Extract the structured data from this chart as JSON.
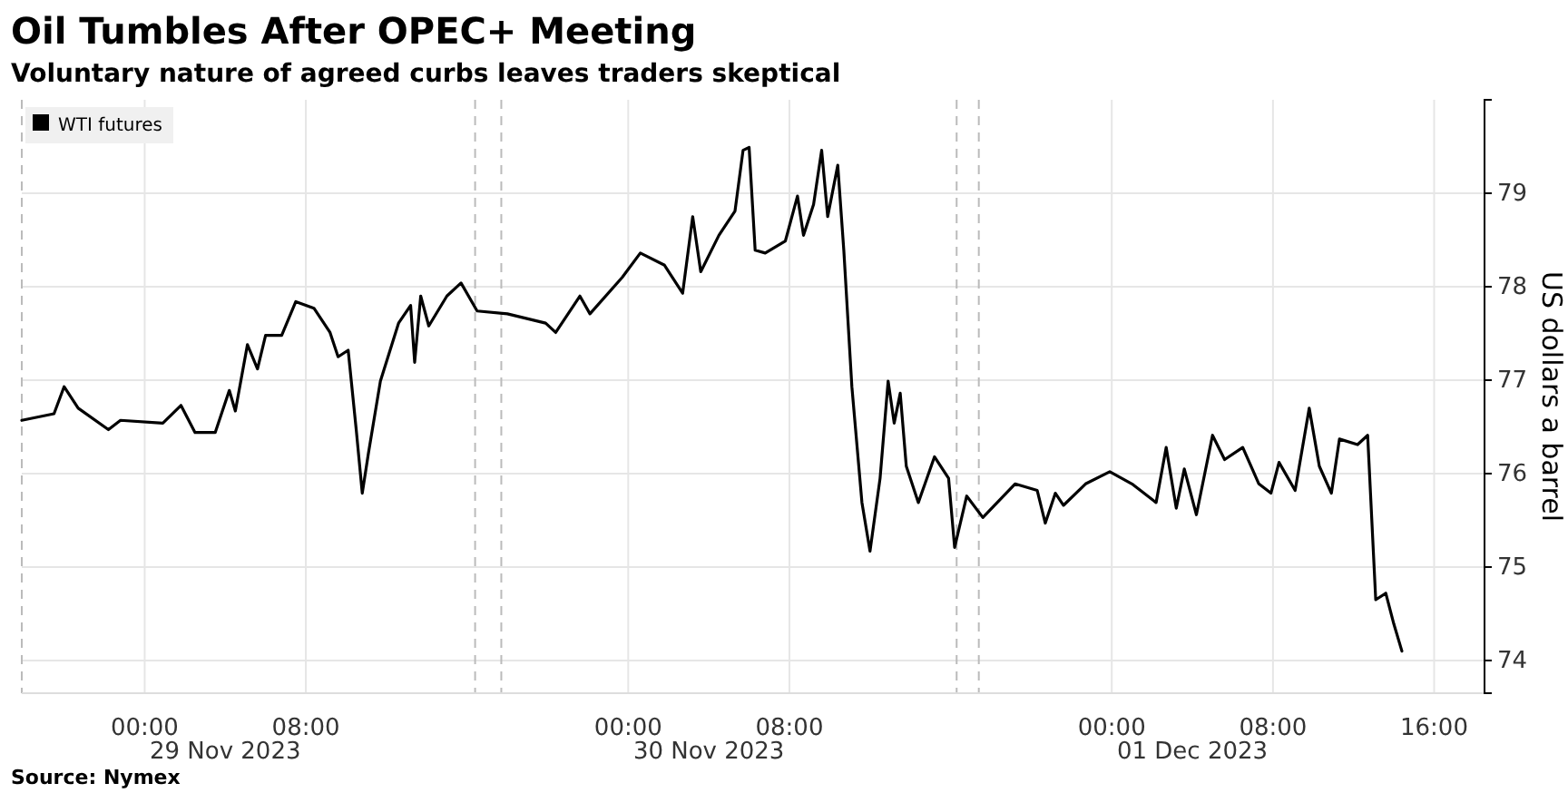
{
  "chart_data": {
    "type": "line",
    "title": "Oil Tumbles After OPEC+ Meeting",
    "subtitle": "Voluntary nature of agreed curbs leaves traders skeptical",
    "ylabel": "US dollars a barrel",
    "x": [
      "2023-11-28T17:54",
      "2023-11-28T19:30",
      "2023-11-28T20:00",
      "2023-11-28T20:42",
      "2023-11-28T22:12",
      "2023-11-28T22:48",
      "2023-11-29T00:54",
      "2023-11-29T01:48",
      "2023-11-29T02:30",
      "2023-11-29T03:30",
      "2023-11-29T04:12",
      "2023-11-29T04:30",
      "2023-11-29T05:06",
      "2023-11-29T05:36",
      "2023-11-29T06:00",
      "2023-11-29T06:48",
      "2023-11-29T07:30",
      "2023-11-29T08:24",
      "2023-11-29T09:12",
      "2023-11-29T09:36",
      "2023-11-29T10:06",
      "2023-11-29T10:30",
      "2023-11-29T10:48",
      "2023-11-29T11:06",
      "2023-11-29T11:42",
      "2023-11-29T12:36",
      "2023-11-29T13:12",
      "2023-11-29T13:24",
      "2023-11-29T13:42",
      "2023-11-29T14:06",
      "2023-11-29T15:00",
      "2023-11-29T15:42",
      "2023-11-29T16:30",
      "2023-11-29T18:00",
      "2023-11-29T19:54",
      "2023-11-29T20:24",
      "2023-11-29T21:36",
      "2023-11-29T22:06",
      "2023-11-29T23:42",
      "2023-11-30T00:36",
      "2023-11-30T01:48",
      "2023-11-30T02:42",
      "2023-11-30T03:12",
      "2023-11-30T03:36",
      "2023-11-30T04:30",
      "2023-11-30T05:18",
      "2023-11-30T05:42",
      "2023-11-30T06:00",
      "2023-11-30T06:18",
      "2023-11-30T06:48",
      "2023-11-30T07:48",
      "2023-11-30T08:24",
      "2023-11-30T08:42",
      "2023-11-30T09:12",
      "2023-11-30T09:36",
      "2023-11-30T09:54",
      "2023-11-30T10:24",
      "2023-11-30T10:42",
      "2023-11-30T11:06",
      "2023-11-30T11:36",
      "2023-11-30T12:00",
      "2023-11-30T12:30",
      "2023-11-30T12:54",
      "2023-11-30T13:12",
      "2023-11-30T13:30",
      "2023-11-30T13:48",
      "2023-11-30T14:24",
      "2023-11-30T15:12",
      "2023-11-30T15:54",
      "2023-11-30T16:12",
      "2023-11-30T16:48",
      "2023-11-30T17:36",
      "2023-11-30T19:12",
      "2023-11-30T20:18",
      "2023-11-30T20:42",
      "2023-11-30T21:12",
      "2023-11-30T21:36",
      "2023-11-30T22:42",
      "2023-11-30T23:54",
      "2023-12-01T01:00",
      "2023-12-01T02:12",
      "2023-12-01T02:42",
      "2023-12-01T03:12",
      "2023-12-01T03:36",
      "2023-12-01T04:12",
      "2023-12-01T05:00",
      "2023-12-01T05:36",
      "2023-12-01T06:30",
      "2023-12-01T07:18",
      "2023-12-01T07:54",
      "2023-12-01T08:18",
      "2023-12-01T09:06",
      "2023-12-01T09:48",
      "2023-12-01T10:18",
      "2023-12-01T10:54",
      "2023-12-01T11:18",
      "2023-12-01T12:12",
      "2023-12-01T12:42",
      "2023-12-01T13:06",
      "2023-12-01T13:36",
      "2023-12-01T14:00",
      "2023-12-01T14:24"
    ],
    "series": [
      {
        "name": "WTI futures",
        "color": "#000000",
        "values": [
          76.57,
          76.64,
          76.93,
          76.7,
          76.47,
          76.57,
          76.54,
          76.73,
          76.44,
          76.44,
          76.89,
          76.67,
          77.38,
          77.12,
          77.48,
          77.48,
          77.84,
          77.77,
          77.51,
          77.25,
          77.32,
          76.47,
          75.79,
          76.21,
          76.99,
          77.61,
          77.8,
          77.19,
          77.9,
          77.58,
          77.9,
          78.04,
          77.74,
          77.71,
          77.61,
          77.51,
          77.9,
          77.71,
          78.1,
          78.36,
          78.23,
          77.93,
          78.75,
          78.16,
          78.55,
          78.81,
          79.46,
          79.49,
          78.39,
          78.36,
          78.49,
          78.97,
          78.55,
          78.88,
          79.46,
          78.75,
          79.3,
          78.39,
          76.93,
          75.69,
          75.17,
          75.95,
          76.99,
          76.54,
          76.86,
          76.08,
          75.69,
          76.18,
          75.95,
          75.21,
          75.76,
          75.53,
          75.89,
          75.82,
          75.47,
          75.79,
          75.66,
          75.89,
          76.02,
          75.89,
          75.69,
          76.28,
          75.63,
          76.05,
          75.56,
          76.41,
          76.15,
          76.28,
          75.89,
          75.79,
          76.12,
          75.82,
          76.7,
          76.08,
          75.79,
          76.37,
          76.31,
          76.41,
          74.65,
          74.72,
          74.39,
          74.1
        ]
      }
    ],
    "xlim": [
      "2023-11-28T17:54",
      "2023-12-01T18:30"
    ],
    "xticks": [
      {
        "value": "2023-11-29T00:00",
        "label": "00:00"
      },
      {
        "value": "2023-11-29T08:00",
        "label": "08:00"
      },
      {
        "value": "2023-11-30T00:00",
        "label": "00:00"
      },
      {
        "value": "2023-11-30T08:00",
        "label": "08:00"
      },
      {
        "value": "2023-12-01T00:00",
        "label": "00:00"
      },
      {
        "value": "2023-12-01T08:00",
        "label": "08:00"
      },
      {
        "value": "2023-12-01T16:00",
        "label": "16:00"
      }
    ],
    "ylim": [
      73.65,
      80.0
    ],
    "yticks": [
      74,
      75,
      76,
      77,
      78,
      79
    ],
    "grid": true,
    "legend": "top left",
    "line_style": "solid",
    "ref_lines": [
      {
        "axis": "x",
        "value": "2023-11-29T16:24",
        "color": "#bbbbbb",
        "line_style": "dashed"
      },
      {
        "axis": "x",
        "value": "2023-11-29T17:42",
        "color": "#bbbbbb",
        "line_style": "dashed"
      },
      {
        "axis": "x",
        "value": "2023-11-30T16:18",
        "color": "#bbbbbb",
        "line_style": "dashed"
      },
      {
        "axis": "x",
        "value": "2023-11-30T17:24",
        "color": "#bbbbbb",
        "line_style": "dashed"
      }
    ],
    "annotations": [
      "29 Nov 2023",
      "30 Nov 2023",
      "01 Dec 2023",
      "Source: Nymex"
    ]
  }
}
